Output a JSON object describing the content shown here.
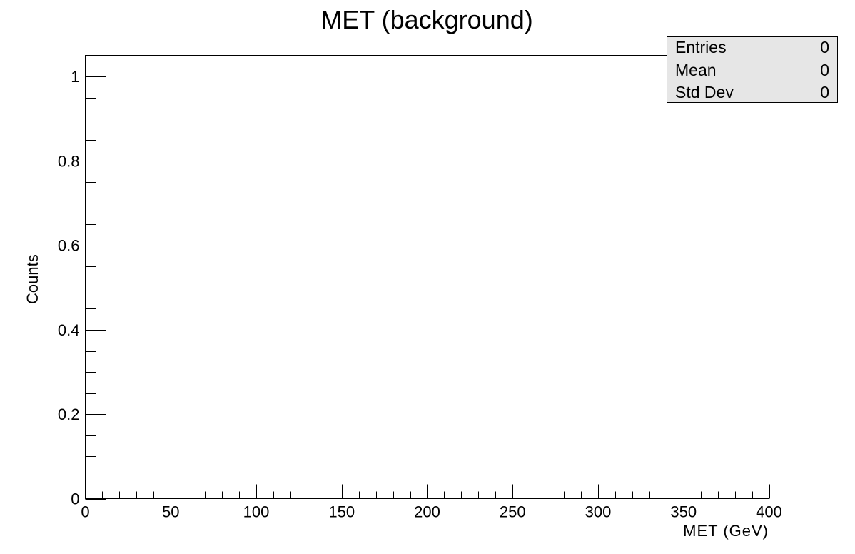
{
  "chart_data": {
    "type": "bar",
    "title": "MET (background)",
    "xlabel": "MET (GeV)",
    "ylabel": "Counts",
    "xlim": [
      0,
      400
    ],
    "ylim": [
      0,
      1.05
    ],
    "x_ticks": [
      "0",
      "50",
      "100",
      "150",
      "200",
      "250",
      "300",
      "350",
      "400"
    ],
    "y_ticks": [
      "0",
      "0.2",
      "0.4",
      "0.6",
      "0.8",
      "1"
    ],
    "categories": [],
    "values": [],
    "grid": false,
    "legend": "none",
    "stats_box": {
      "placement": "top-right",
      "rows": [
        {
          "label": "Entries",
          "value": "0"
        },
        {
          "label": "Mean",
          "value": "0"
        },
        {
          "label": "Std Dev",
          "value": "0"
        }
      ]
    }
  },
  "colors": {
    "axis": "#000000",
    "background": "#ffffff",
    "stats_fill": "#e6e6e6"
  }
}
